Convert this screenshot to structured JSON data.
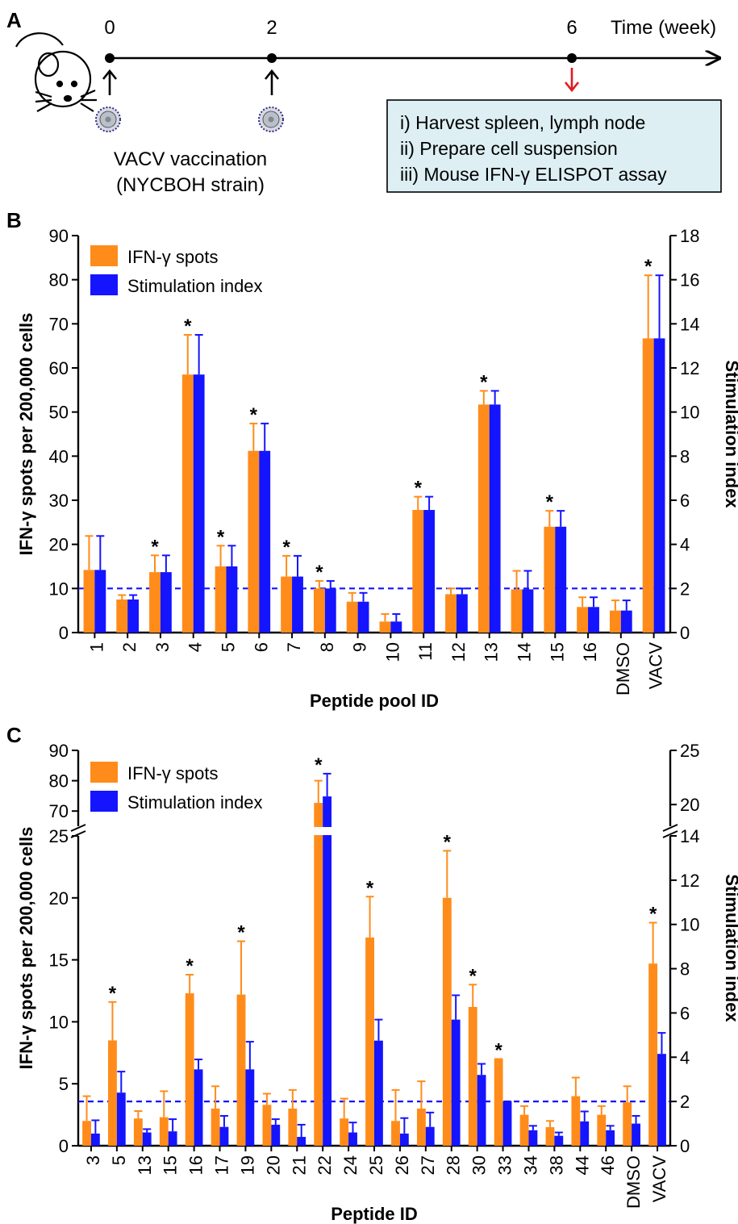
{
  "panels": {
    "a": {
      "letter": "A",
      "timeline": {
        "ticks": [
          "0",
          "2",
          "6"
        ],
        "axis_label": "Time (week)",
        "vaccination_label": "VACV vaccination",
        "strain_label": "(NYCBOH strain)",
        "procedure_steps": [
          "i) Harvest spleen, lymph node",
          "ii) Prepare cell suspension",
          "iii) Mouse IFN-γ ELISPOT assay"
        ]
      },
      "icons": [
        "mouse-icon",
        "virus-icon",
        "up-arrow-icon",
        "down-arrow-icon"
      ]
    },
    "b": {
      "letter": "B"
    },
    "c": {
      "letter": "C"
    }
  },
  "colors": {
    "ifn_spots": "#FF8C1A",
    "stimulation_index": "#1414FF",
    "threshold_line": "#1414FF",
    "procedure_box": "#DDEFF3",
    "red_arrow": "#E31A1C"
  },
  "chart_data": [
    {
      "type": "bar",
      "panel": "B",
      "xlabel": "Peptide pool ID",
      "ylabel": "IFN-γ spots per 200,000 cells",
      "y2label": "Stimulation index",
      "ylim": [
        0,
        90
      ],
      "y2lim": [
        0,
        18
      ],
      "yticks": [
        "0",
        "10",
        "20",
        "30",
        "40",
        "50",
        "60",
        "70",
        "80",
        "90"
      ],
      "y2ticks": [
        "0",
        "2",
        "4",
        "6",
        "8",
        "10",
        "12",
        "14",
        "16",
        "18"
      ],
      "legend": [
        "IFN-γ spots",
        "Stimulation index"
      ],
      "legend_position": "top-left",
      "threshold_stimulation_index": 2,
      "categories": [
        "1",
        "2",
        "3",
        "4",
        "5",
        "6",
        "7",
        "8",
        "9",
        "10",
        "11",
        "12",
        "13",
        "14",
        "15",
        "16",
        "DMSO",
        "VACV"
      ],
      "series": [
        {
          "name": "IFN-γ spots",
          "axis": "left",
          "values": [
            14.2,
            7.5,
            13.7,
            58.5,
            15,
            41.2,
            12.7,
            10,
            7,
            2.5,
            27.8,
            8.7,
            51.7,
            9.8,
            24,
            5.8,
            5,
            66.7
          ],
          "errors": [
            7.7,
            1,
            3.8,
            9,
            4.7,
            6.2,
            4.7,
            1.7,
            2,
            1.7,
            3,
            1.3,
            3.1,
            4.2,
            3.6,
            2.2,
            2.3,
            14.3
          ]
        },
        {
          "name": "Stimulation index",
          "axis": "right",
          "values": [
            2.84,
            1.5,
            2.74,
            11.7,
            3,
            8.24,
            2.54,
            2,
            1.4,
            0.5,
            5.56,
            1.74,
            10.34,
            1.96,
            4.8,
            1.16,
            1,
            13.34
          ],
          "errors": [
            1.54,
            0.2,
            0.76,
            1.8,
            0.94,
            1.24,
            0.94,
            0.34,
            0.4,
            0.34,
            0.6,
            0.26,
            0.62,
            0.84,
            0.72,
            0.44,
            0.46,
            2.86
          ]
        }
      ],
      "significant": [
        "3",
        "4",
        "5",
        "6",
        "7",
        "8",
        "11",
        "13",
        "15",
        "VACV"
      ],
      "significance_mark": "*"
    },
    {
      "type": "bar",
      "panel": "C",
      "xlabel": "Peptide ID",
      "ylabel": "IFN-γ spots per 200,000 cells",
      "y2label": "Stimulation index",
      "y_axis_break": {
        "lower": [
          0,
          25
        ],
        "upper": [
          65,
          90
        ]
      },
      "y2_axis_break": {
        "lower": [
          0,
          14
        ],
        "upper": [
          18,
          25
        ]
      },
      "yticks": [
        "0",
        "5",
        "10",
        "15",
        "20",
        "25",
        "70",
        "80",
        "90"
      ],
      "y2ticks": [
        "0",
        "2",
        "4",
        "6",
        "8",
        "10",
        "12",
        "14",
        "20",
        "25"
      ],
      "legend": [
        "IFN-γ spots",
        "Stimulation index"
      ],
      "legend_position": "top-left",
      "threshold_stimulation_index": 2,
      "categories": [
        "3",
        "5",
        "13",
        "15",
        "16",
        "17",
        "19",
        "20",
        "21",
        "22",
        "24",
        "25",
        "26",
        "27",
        "28",
        "30",
        "33",
        "34",
        "38",
        "44",
        "46",
        "DMSO",
        "VACV"
      ],
      "series": [
        {
          "name": "IFN-γ spots",
          "axis": "left",
          "values": [
            2,
            8.5,
            2.2,
            2.3,
            12.3,
            3,
            12.2,
            3.3,
            3,
            72.7,
            2.2,
            16.8,
            2,
            3,
            20,
            11.2,
            7,
            2.5,
            1.5,
            4,
            2.5,
            3.5,
            14.7
          ],
          "errors": [
            2,
            3.1,
            0.6,
            2.1,
            1.5,
            1.8,
            4.3,
            0.9,
            1.5,
            7.3,
            1.6,
            3.3,
            2.5,
            2.2,
            3.8,
            1.8,
            0,
            0.7,
            0.5,
            1.5,
            0.7,
            1.3,
            3.3
          ]
        },
        {
          "name": "Stimulation index",
          "axis": "right",
          "values": [
            0.55,
            2.4,
            0.6,
            0.65,
            3.45,
            0.85,
            3.45,
            0.95,
            0.4,
            20.75,
            0.6,
            4.75,
            0.55,
            0.85,
            5.7,
            3.2,
            2,
            0.7,
            0.45,
            1.1,
            0.7,
            1,
            4.15
          ],
          "errors": [
            0.6,
            0.95,
            0.15,
            0.55,
            0.45,
            0.5,
            1.25,
            0.25,
            0.55,
            2.1,
            0.45,
            0.95,
            0.7,
            0.65,
            1.1,
            0.5,
            0,
            0.2,
            0.15,
            0.45,
            0.2,
            0.35,
            0.95
          ]
        }
      ],
      "significant": [
        "5",
        "16",
        "19",
        "22",
        "25",
        "28",
        "30",
        "33",
        "VACV"
      ],
      "significance_mark": "*"
    }
  ]
}
